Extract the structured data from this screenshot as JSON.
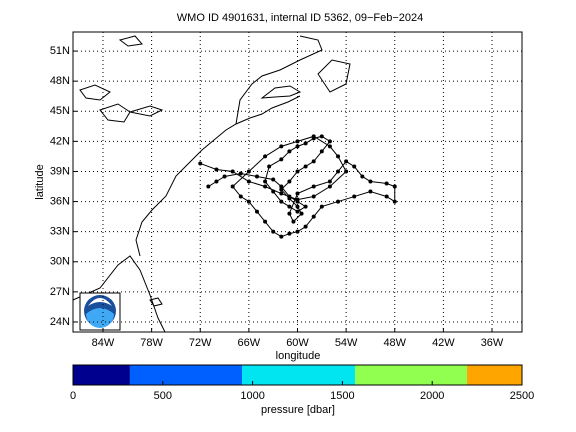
{
  "chart_data": {
    "type": "line",
    "title": "WMO ID 4901631, internal ID 5362, 09−Feb−2024",
    "x_label": "longitude",
    "y_label": "latitude",
    "xlim": [
      -87.7,
      -32.3
    ],
    "ylim": [
      23,
      52.9
    ],
    "xticks": [
      {
        "value": -84,
        "label": "84W"
      },
      {
        "value": -78,
        "label": "78W"
      },
      {
        "value": -72,
        "label": "72W"
      },
      {
        "value": -66,
        "label": "66W"
      },
      {
        "value": -60,
        "label": "60W"
      },
      {
        "value": -54,
        "label": "54W"
      },
      {
        "value": -48,
        "label": "48W"
      },
      {
        "value": -42,
        "label": "42W"
      },
      {
        "value": -36,
        "label": "36W"
      }
    ],
    "yticks": [
      {
        "value": 24,
        "label": "24N"
      },
      {
        "value": 27,
        "label": "27N"
      },
      {
        "value": 30,
        "label": "30N"
      },
      {
        "value": 33,
        "label": "33N"
      },
      {
        "value": 36,
        "label": "36N"
      },
      {
        "value": 39,
        "label": "39N"
      },
      {
        "value": 42,
        "label": "42N"
      },
      {
        "value": 45,
        "label": "45N"
      },
      {
        "value": 48,
        "label": "48N"
      },
      {
        "value": 51,
        "label": "51N"
      }
    ],
    "grid": true,
    "color": "#000000",
    "x": [
      -71,
      -70,
      -69,
      -67,
      -65,
      -63,
      -62,
      -61,
      -60,
      -59,
      -60,
      -61,
      -62,
      -63,
      -64,
      -63.5,
      -62,
      -61,
      -60,
      -59,
      -58,
      -57,
      -56,
      -57,
      -58,
      -59,
      -60,
      -61,
      -62,
      -61,
      -60,
      -59.5,
      -60.5,
      -61,
      -60,
      -58,
      -56,
      -55,
      -54,
      -53,
      -52,
      -51,
      -49,
      -48,
      -48,
      -49,
      -51,
      -53,
      -55,
      -57,
      -58,
      -59,
      -60,
      -61,
      -62,
      -63,
      -64,
      -65,
      -66,
      -67,
      -68,
      -66,
      -64,
      -62,
      -60,
      -58,
      -56,
      -55,
      -54,
      -56,
      -58,
      -60,
      -62,
      -64,
      -66,
      -68,
      -70,
      -72
    ],
    "values": [
      37.5,
      38,
      38.5,
      38.8,
      38.5,
      38.2,
      37.5,
      36.5,
      36,
      35.5,
      35,
      35.5,
      36,
      37,
      38,
      39.5,
      40.2,
      41,
      41.5,
      41.8,
      42.3,
      42.5,
      42,
      41,
      40,
      39.5,
      39,
      38,
      37.2,
      36.3,
      35.5,
      34.8,
      34,
      34.8,
      36.8,
      37.5,
      38,
      39,
      40,
      39.5,
      38.5,
      38,
      37.8,
      37.5,
      36,
      36.5,
      37,
      36.5,
      36,
      35.5,
      34.5,
      33.5,
      33,
      32.8,
      32.5,
      33,
      34,
      35,
      36,
      36.5,
      37.5,
      39,
      40.5,
      41.5,
      42,
      42.5,
      41.5,
      40.5,
      39,
      37.5,
      36.5,
      36.2,
      36.8,
      37.5,
      38,
      39,
      39.2,
      39.8
    ],
    "colorbar": {
      "label": "pressure [dbar]",
      "bins": [
        0,
        317,
        941,
        1570,
        2194,
        2500
      ],
      "colors": [
        "#00008f",
        "#0060ff",
        "#00e5f0",
        "#90ff50",
        "#ffa500"
      ],
      "ticks": [
        0,
        500,
        1000,
        1500,
        2000,
        2500
      ]
    }
  }
}
